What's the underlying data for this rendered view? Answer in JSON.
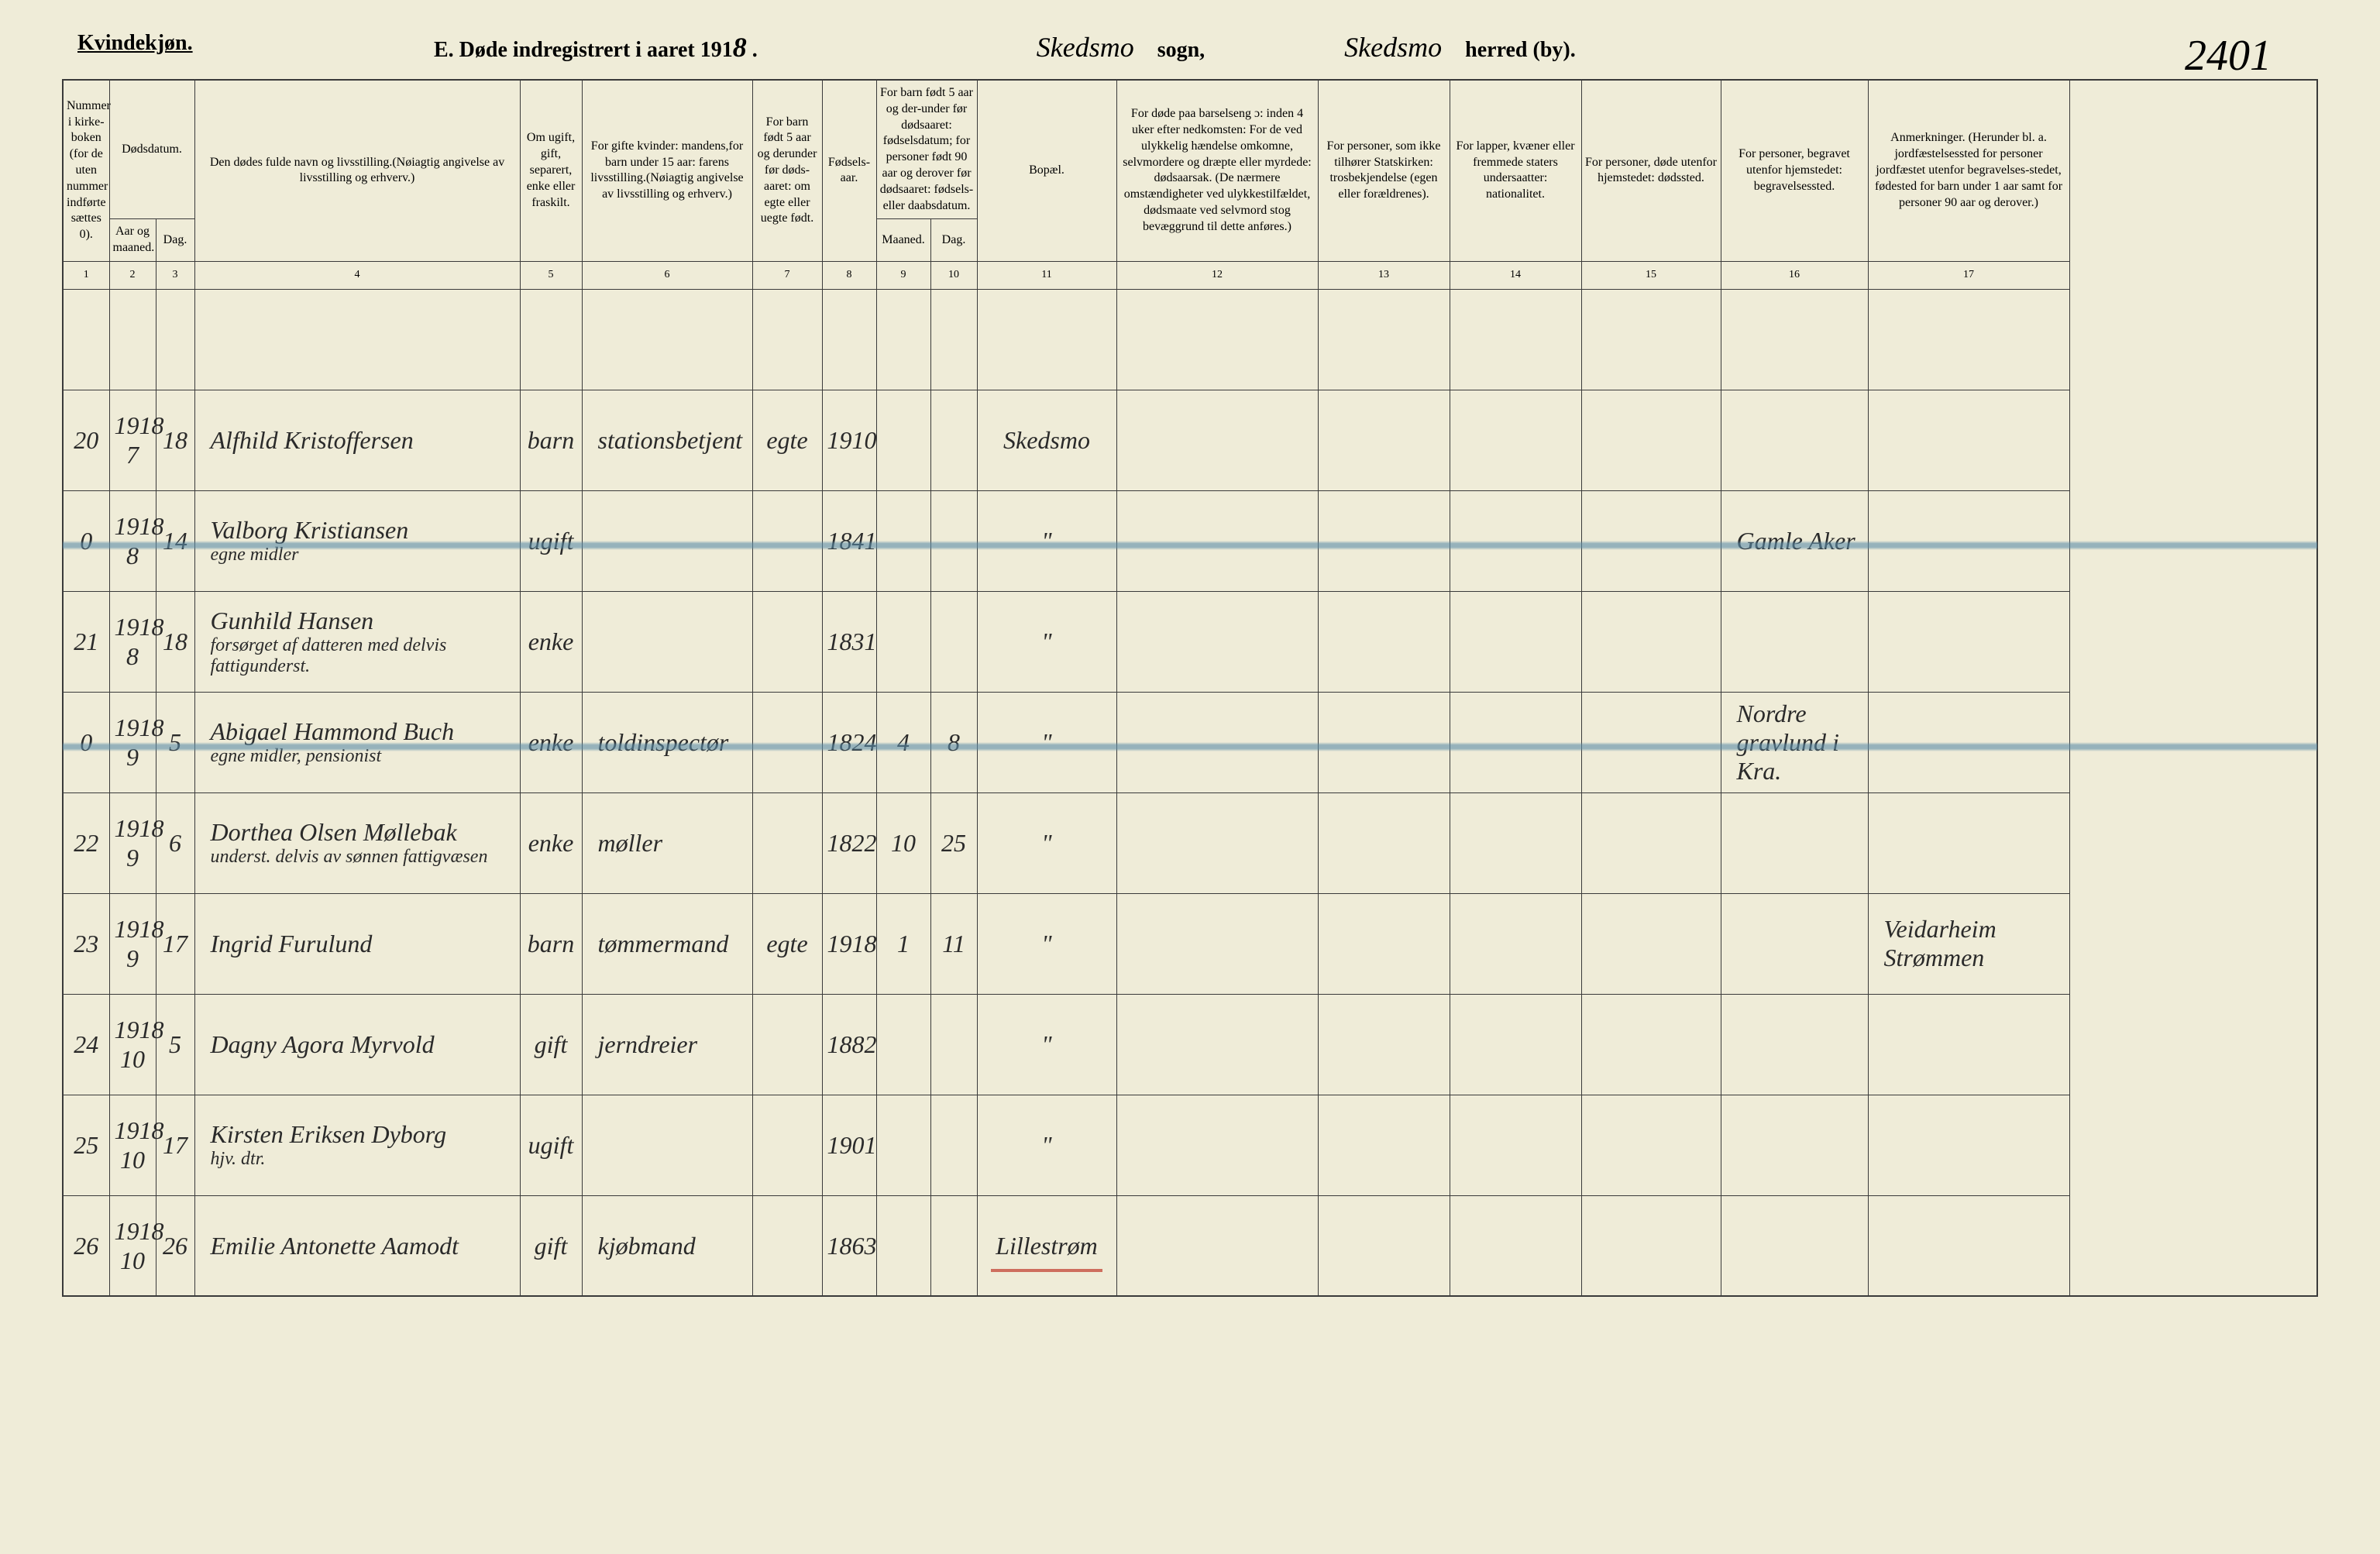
{
  "header": {
    "gender": "Kvindekjøn.",
    "title_prefix": "E.  Døde indregistrert i aaret 191",
    "year_suffix": "8",
    "sogn": "Skedsmo",
    "sogn_label": "sogn,",
    "herred": "Skedsmo",
    "herred_label": "herred (by).",
    "page_number": "2401"
  },
  "columns": {
    "c1": "Nummer i kirke-boken (for de uten nummer indførte sættes 0).",
    "c2_3_top": "Dødsdatum.",
    "c2": "Aar og maaned.",
    "c3": "Dag.",
    "c4": "Den dødes fulde navn og livsstilling.\n(Nøiagtig angivelse av livsstilling og erhverv.)",
    "c5": "Om ugift, gift, separert, enke eller fraskilt.",
    "c6": "For gifte kvinder: mandens,\nfor barn under 15 aar: farens livsstilling.\n(Nøiagtig angivelse av livsstilling og erhverv.)",
    "c7": "For barn født 5 aar og derunder før døds-aaret: om egte eller uegte født.",
    "c8": "Fødsels-aar.",
    "c9_10_top": "For barn født 5 aar og der-under før dødsaaret: fødselsdatum; for personer født 90 aar og derover før dødsaaret: fødsels- eller daabsdatum.",
    "c9": "Maaned.",
    "c10": "Dag.",
    "c11": "Bopæl.",
    "c12": "For døde paa barselseng ɔ: inden 4 uker efter nedkomsten: For de ved ulykkelig hændelse omkomne, selvmordere og dræpte eller myrdede: dødsaarsak. (De nærmere omstændigheter ved ulykkestilfældet, dødsmaate ved selvmord stog bevæggrund til dette anføres.)",
    "c13": "For personer, som ikke tilhører Statskirken: trosbekjendelse (egen eller forældrenes).",
    "c14": "For lapper, kvæner eller fremmede staters undersaatter: nationalitet.",
    "c15": "For personer, døde utenfor hjemstedet: dødssted.",
    "c16": "For personer, begravet utenfor hjemstedet: begravelsessted.",
    "c17": "Anmerkninger. (Herunder bl. a. jordfæstelsessted for personer jordfæstet utenfor begravelses-stedet, fødested for barn under 1 aar samt for personer 90 aar og derover.)"
  },
  "colnums": [
    "1",
    "2",
    "3",
    "4",
    "5",
    "6",
    "7",
    "8",
    "9",
    "10",
    "11",
    "12",
    "13",
    "14",
    "15",
    "16",
    "17"
  ],
  "rows": [
    {
      "num": "20",
      "year": "1918",
      "month": "7",
      "day": "18",
      "name": "Alfhild Kristoffersen",
      "status": "barn",
      "spouse": "stationsbetjent",
      "egte": "egte",
      "birthyear": "1910",
      "b_m": "",
      "b_d": "",
      "bopel": "Skedsmo",
      "c12": "",
      "c13": "",
      "c14": "",
      "c15": "",
      "c16": "",
      "c17": "",
      "struck": false
    },
    {
      "num": "0",
      "year": "1918",
      "month": "8",
      "day": "14",
      "name": "Valborg Kristiansen\negne midler",
      "status": "ugift",
      "spouse": "",
      "egte": "",
      "birthyear": "1841",
      "b_m": "",
      "b_d": "",
      "bopel": "\"",
      "c12": "",
      "c13": "",
      "c14": "",
      "c15": "",
      "c16": "Gamle Aker",
      "c17": "",
      "struck": true
    },
    {
      "num": "21",
      "year": "1918",
      "month": "8",
      "day": "18",
      "name": "Gunhild Hansen\nforsørget af datteren med delvis fattigunderst.",
      "status": "enke",
      "spouse": "",
      "egte": "",
      "birthyear": "1831",
      "b_m": "",
      "b_d": "",
      "bopel": "\"",
      "c12": "",
      "c13": "",
      "c14": "",
      "c15": "",
      "c16": "",
      "c17": "",
      "struck": false
    },
    {
      "num": "0",
      "year": "1918",
      "month": "9",
      "day": "5",
      "name": "Abigael Hammond Buch\negne midler, pensionist",
      "status": "enke",
      "spouse": "toldinspectør",
      "egte": "",
      "birthyear": "1824",
      "b_m": "4",
      "b_d": "8",
      "bopel": "\"",
      "c12": "",
      "c13": "",
      "c14": "",
      "c15": "",
      "c16": "Nordre gravlund i Kra.",
      "c17": "",
      "struck": true
    },
    {
      "num": "22",
      "year": "1918",
      "month": "9",
      "day": "6",
      "name": "Dorthea Olsen Møllebak\nunderst. delvis av sønnen fattigvæsen",
      "status": "enke",
      "spouse": "møller",
      "egte": "",
      "birthyear": "1822",
      "b_m": "10",
      "b_d": "25",
      "bopel": "\"",
      "c12": "",
      "c13": "",
      "c14": "",
      "c15": "",
      "c16": "",
      "c17": "",
      "struck": false
    },
    {
      "num": "23",
      "year": "1918",
      "month": "9",
      "day": "17",
      "name": "Ingrid Furulund",
      "status": "barn",
      "spouse": "tømmermand",
      "egte": "egte",
      "birthyear": "1918",
      "b_m": "1",
      "b_d": "11",
      "bopel": "\"",
      "c12": "",
      "c13": "",
      "c14": "",
      "c15": "",
      "c16": "",
      "c17": "Veidarheim Strømmen",
      "struck": false
    },
    {
      "num": "24",
      "year": "1918",
      "month": "10",
      "day": "5",
      "name": "Dagny Agora Myrvold",
      "status": "gift",
      "spouse": "jerndreier",
      "egte": "",
      "birthyear": "1882",
      "b_m": "",
      "b_d": "",
      "bopel": "\"",
      "c12": "",
      "c13": "",
      "c14": "",
      "c15": "",
      "c16": "",
      "c17": "",
      "struck": false
    },
    {
      "num": "25",
      "year": "1918",
      "month": "10",
      "day": "17",
      "name": "Kirsten Eriksen Dyborg\nhjv. dtr.",
      "status": "ugift",
      "spouse": "",
      "egte": "",
      "birthyear": "1901",
      "b_m": "",
      "b_d": "",
      "bopel": "\"",
      "c12": "",
      "c13": "",
      "c14": "",
      "c15": "",
      "c16": "",
      "c17": "",
      "struck": false
    },
    {
      "num": "26",
      "year": "1918",
      "month": "10",
      "day": "26",
      "name": "Emilie Antonette Aamodt",
      "status": "gift",
      "spouse": "kjøbmand",
      "egte": "",
      "birthyear": "1863",
      "b_m": "",
      "b_d": "",
      "bopel": "Lillestrøm",
      "c12": "",
      "c13": "",
      "c14": "",
      "c15": "",
      "c16": "",
      "c17": "",
      "struck": false,
      "red": true
    }
  ],
  "col_widths": {
    "c1": "60px",
    "c2": "60px",
    "c3": "50px",
    "c4": "420px",
    "c5": "80px",
    "c6": "220px",
    "c7": "90px",
    "c8": "70px",
    "c9": "70px",
    "c10": "60px",
    "c11": "180px",
    "c12": "260px",
    "c13": "170px",
    "c14": "170px",
    "c15": "180px",
    "c16": "190px",
    "c17": "260px"
  },
  "colors": {
    "paper": "#efecd8",
    "ink": "#2a2a2a",
    "rule": "#3a3a3a",
    "blue_strike": "#5a8ca8",
    "red_line": "#c0392b"
  }
}
